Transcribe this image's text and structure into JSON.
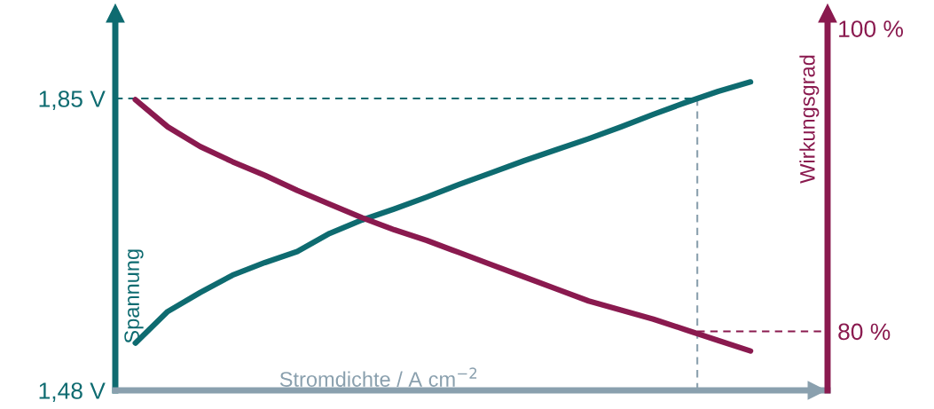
{
  "chart_data": {
    "type": "line",
    "xlabel": "Stromdichte / A cm$^{−2}$",
    "ylabel": "Spannung",
    "y2label": "Wirkungsgrad",
    "categories": [
      null,
      null,
      null,
      null,
      null,
      null,
      null,
      null,
      null,
      null,
      null,
      null,
      null,
      null,
      null,
      null,
      null,
      null,
      null,
      null
    ],
    "series": [
      {
        "color": "#0e6b70",
        "values": [
          1.54,
          1.58,
          1.604,
          1.626,
          1.642,
          1.656,
          1.679,
          1.696,
          1.71,
          1.725,
          1.741,
          1.756,
          1.771,
          1.785,
          1.799,
          1.814,
          1.83,
          1.845,
          1.859,
          1.871
        ]
      },
      {
        "color": "#8a1a4f",
        "axis": "y2",
        "values": [
          95.3,
          93.5,
          92.2,
          91.2,
          90.3,
          89.3,
          88.4,
          87.5,
          86.7,
          86.0,
          85.2,
          84.4,
          83.6,
          82.8,
          82.0,
          81.4,
          80.8,
          80.1,
          79.4,
          78.7
        ]
      }
    ],
    "ylim": [
      1.48,
      1.958
    ],
    "yticks": [
      {
        "value": 1.48,
        "label": "1,48 V"
      },
      {
        "value": 1.85,
        "label": "1,85 V"
      }
    ],
    "y2lim": [
      76.1,
      101.0
    ],
    "y2ticks": [
      {
        "value": 80,
        "label": "80 %"
      },
      {
        "value": 100,
        "label": "100 %"
      }
    ],
    "ref_lines": [
      {
        "axis": "y",
        "value": 1.85,
        "color": "#0e6b70",
        "line_style": "dashed"
      },
      {
        "axis": "y2",
        "value": 80,
        "color": "#8a1a4f",
        "line_style": "dashed"
      }
    ],
    "tick_labels": "y",
    "grid": false,
    "line_style": "solid",
    "marker": "none"
  }
}
